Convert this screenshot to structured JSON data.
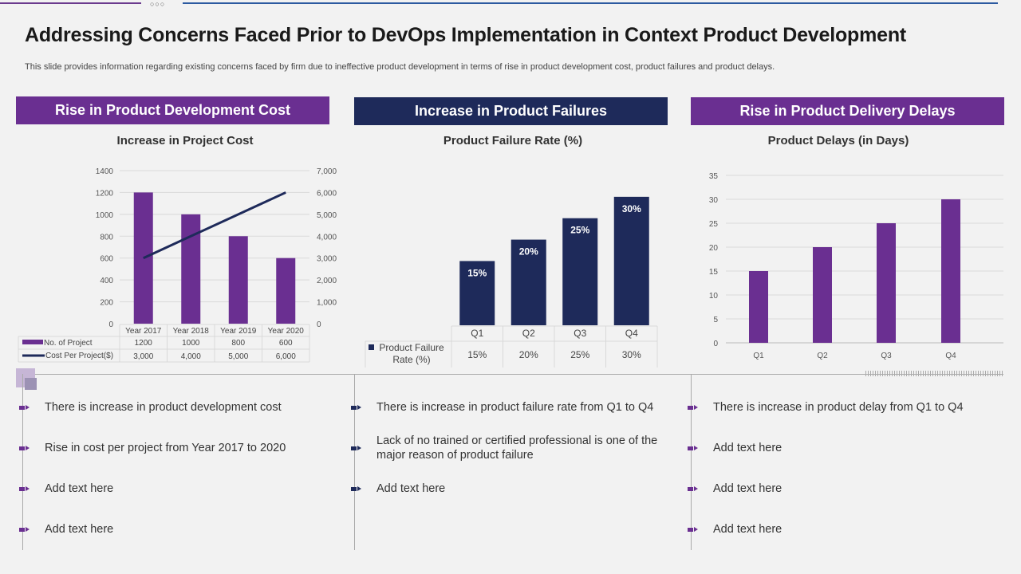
{
  "title": "Addressing Concerns Faced Prior to DevOps Implementation in Context Product Development",
  "subtitle": "This slide provides information regarding existing concerns faced by firm due to ineffective product development in terms of rise in product development cost, product failures and product delays.",
  "decor_dots": "○○○",
  "colors": {
    "purple": "#6a2f91",
    "navy": "#1e2a5a",
    "grid": "#d9d9d9"
  },
  "sections": [
    {
      "header": "Rise in Product Development Cost",
      "color": "#6a2f91",
      "chart_title": "Increase in Project Cost",
      "bullets": [
        "There is increase in product development cost",
        "Rise in cost per project from Year 2017 to 2020",
        "Add text here",
        "Add text here"
      ]
    },
    {
      "header": "Increase in Product Failures",
      "color": "#1e2a5a",
      "chart_title": "Product Failure Rate (%)",
      "bullets": [
        "There is increase in product failure rate from Q1 to Q4",
        "Lack of no trained or certified professional is one of the major reason of product failure",
        "Add text here"
      ]
    },
    {
      "header": "Rise in Product Delivery Delays",
      "color": "#6a2f91",
      "chart_title": "Product Delays (in Days)",
      "bullets": [
        "There is increase in product delay from Q1 to Q4",
        "Add text here",
        "Add text here",
        "Add text here"
      ]
    }
  ],
  "chart_data": [
    {
      "type": "bar+line",
      "title": "Increase in Project Cost",
      "categories": [
        "Year 2017",
        "Year 2018",
        "Year 2019",
        "Year 2020"
      ],
      "series": [
        {
          "name": "No. of Project",
          "type": "bar",
          "axis": "left",
          "values": [
            1200,
            1000,
            800,
            600
          ],
          "labels": [
            "1200",
            "1000",
            "800",
            "600"
          ]
        },
        {
          "name": "Cost Per Project($)",
          "type": "line",
          "axis": "right",
          "values": [
            3000,
            4000,
            5000,
            6000
          ],
          "labels": [
            "3,000",
            "4,000",
            "5,000",
            "6,000"
          ]
        }
      ],
      "ylim": [
        0,
        1400
      ],
      "yticks": [
        "0",
        "200",
        "400",
        "600",
        "800",
        "1000",
        "1200",
        "1400"
      ],
      "y2lim": [
        0,
        7000
      ],
      "y2ticks": [
        "0",
        "1,000",
        "2,000",
        "3,000",
        "4,000",
        "5,000",
        "6,000",
        "7,000"
      ],
      "grid": true,
      "legend": "data-table"
    },
    {
      "type": "bar",
      "title": "Product Failure Rate (%)",
      "categories": [
        "Q1",
        "Q2",
        "Q3",
        "Q4"
      ],
      "series": [
        {
          "name": "Product Failure Rate (%)",
          "values": [
            15,
            20,
            25,
            30
          ],
          "labels": [
            "15%",
            "20%",
            "25%",
            "30%"
          ],
          "table_labels": [
            "15%",
            "20%",
            "25%",
            "30%"
          ]
        }
      ],
      "ylim": [
        0,
        35
      ],
      "grid": false,
      "legend": "data-table"
    },
    {
      "type": "bar",
      "title": "Product Delays (in Days)",
      "categories": [
        "Q1",
        "Q2",
        "Q3",
        "Q4"
      ],
      "series": [
        {
          "values": [
            15,
            20,
            25,
            30
          ]
        }
      ],
      "ylim": [
        0,
        35
      ],
      "yticks": [
        "0",
        "5",
        "10",
        "15",
        "20",
        "25",
        "30",
        "35"
      ],
      "grid": true
    }
  ]
}
